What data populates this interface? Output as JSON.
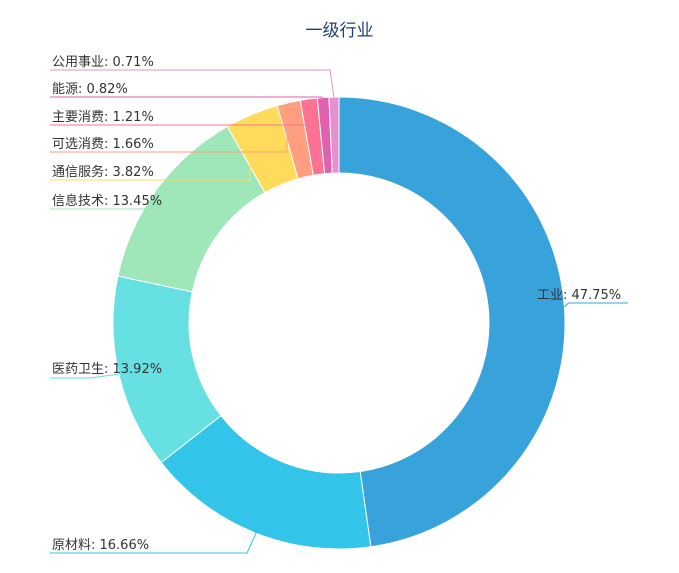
{
  "chart_data": {
    "type": "pie",
    "variant": "donut",
    "title": "一级行业",
    "start_angle_deg": 0,
    "direction": "clockwise",
    "slices": [
      {
        "name": "工业",
        "percent": 47.75,
        "label": "工业: 47.75%",
        "color": "#38a2da"
      },
      {
        "name": "原材料",
        "percent": 16.66,
        "label": "原材料: 16.66%",
        "color": "#32c5e9"
      },
      {
        "name": "医药卫生",
        "percent": 13.92,
        "label": "医药卫生: 13.92%",
        "color": "#67e0e3"
      },
      {
        "name": "信息技术",
        "percent": 13.45,
        "label": "信息技术: 13.45%",
        "color": "#9fe6b8"
      },
      {
        "name": "通信服务",
        "percent": 3.82,
        "label": "通信服务: 3.82%",
        "color": "#ffdb5c"
      },
      {
        "name": "可选消费",
        "percent": 1.66,
        "label": "可选消费: 1.66%",
        "color": "#ff9f7f"
      },
      {
        "name": "主要消费",
        "percent": 1.21,
        "label": "主要消费: 1.21%",
        "color": "#fb7293"
      },
      {
        "name": "能源",
        "percent": 0.82,
        "label": "能源: 0.82%",
        "color": "#e062ae"
      },
      {
        "name": "公用事业",
        "percent": 0.71,
        "label": "公用事业: 0.71%",
        "color": "#e690d1"
      }
    ]
  }
}
